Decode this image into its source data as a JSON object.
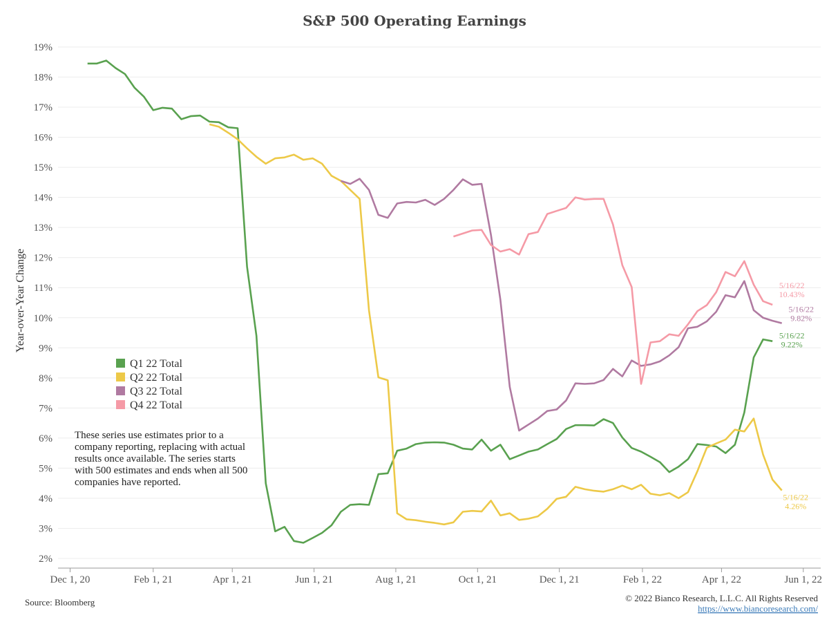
{
  "chart_data": {
    "type": "line",
    "title": "S&P 500 Operating Earnings",
    "xlabel": "",
    "ylabel": "Year-over-Year Change",
    "ylim": [
      2,
      19
    ],
    "y_ticks": [
      "2%",
      "3%",
      "4%",
      "5%",
      "6%",
      "7%",
      "8%",
      "9%",
      "10%",
      "11%",
      "12%",
      "13%",
      "14%",
      "15%",
      "16%",
      "17%",
      "18%",
      "19%"
    ],
    "x_ticks": [
      {
        "date": "2020-12-01",
        "label": "Dec 1, 20"
      },
      {
        "date": "2021-02-01",
        "label": "Feb 1, 21"
      },
      {
        "date": "2021-04-01",
        "label": "Apr 1, 21"
      },
      {
        "date": "2021-06-01",
        "label": "Jun 1, 21"
      },
      {
        "date": "2021-08-01",
        "label": "Aug 1, 21"
      },
      {
        "date": "2021-10-01",
        "label": "Oct 1, 21"
      },
      {
        "date": "2021-12-01",
        "label": "Dec 1, 21"
      },
      {
        "date": "2022-02-01",
        "label": "Feb 1, 22"
      },
      {
        "date": "2022-04-01",
        "label": "Apr 1, 22"
      },
      {
        "date": "2022-06-01",
        "label": "Jun 1, 22"
      }
    ],
    "x_range": [
      "2020-11-22",
      "2022-06-14"
    ],
    "grid": "horizontal",
    "legend_position": "left-middle",
    "series": [
      {
        "name": "Q1 22 Total",
        "color": "#59a14f",
        "end_label": {
          "date": "5/16/22",
          "value": "9.22%"
        },
        "points": [
          [
            "2020-12-14",
            18.45
          ],
          [
            "2020-12-21",
            18.45
          ],
          [
            "2020-12-28",
            18.55
          ],
          [
            "2021-01-04",
            18.3
          ],
          [
            "2021-01-11",
            18.1
          ],
          [
            "2021-01-18",
            17.65
          ],
          [
            "2021-01-25",
            17.35
          ],
          [
            "2021-02-01",
            16.9
          ],
          [
            "2021-02-08",
            16.98
          ],
          [
            "2021-02-15",
            16.95
          ],
          [
            "2021-02-22",
            16.6
          ],
          [
            "2021-03-01",
            16.7
          ],
          [
            "2021-03-08",
            16.72
          ],
          [
            "2021-03-15",
            16.52
          ],
          [
            "2021-03-22",
            16.5
          ],
          [
            "2021-03-29",
            16.33
          ],
          [
            "2021-04-05",
            16.3
          ],
          [
            "2021-04-12",
            11.7
          ],
          [
            "2021-04-19",
            9.4
          ],
          [
            "2021-04-26",
            4.5
          ],
          [
            "2021-05-03",
            2.9
          ],
          [
            "2021-05-10",
            3.05
          ],
          [
            "2021-05-17",
            2.58
          ],
          [
            "2021-05-24",
            2.52
          ],
          [
            "2021-05-31",
            2.68
          ],
          [
            "2021-06-07",
            2.85
          ],
          [
            "2021-06-14",
            3.1
          ],
          [
            "2021-06-21",
            3.55
          ],
          [
            "2021-06-28",
            3.78
          ],
          [
            "2021-07-05",
            3.8
          ],
          [
            "2021-07-12",
            3.78
          ],
          [
            "2021-07-19",
            4.8
          ],
          [
            "2021-07-26",
            4.83
          ],
          [
            "2021-08-02",
            5.58
          ],
          [
            "2021-08-09",
            5.65
          ],
          [
            "2021-08-16",
            5.8
          ],
          [
            "2021-08-23",
            5.85
          ],
          [
            "2021-08-30",
            5.86
          ],
          [
            "2021-09-06",
            5.85
          ],
          [
            "2021-09-13",
            5.78
          ],
          [
            "2021-09-20",
            5.65
          ],
          [
            "2021-09-27",
            5.62
          ],
          [
            "2021-10-04",
            5.95
          ],
          [
            "2021-10-11",
            5.58
          ],
          [
            "2021-10-18",
            5.78
          ],
          [
            "2021-10-25",
            5.3
          ],
          [
            "2021-11-01",
            5.42
          ],
          [
            "2021-11-08",
            5.55
          ],
          [
            "2021-11-15",
            5.62
          ],
          [
            "2021-11-22",
            5.8
          ],
          [
            "2021-11-29",
            5.97
          ],
          [
            "2021-12-06",
            6.3
          ],
          [
            "2021-12-13",
            6.43
          ],
          [
            "2021-12-20",
            6.43
          ],
          [
            "2021-12-27",
            6.42
          ],
          [
            "2022-01-03",
            6.63
          ],
          [
            "2022-01-10",
            6.5
          ],
          [
            "2022-01-17",
            6.02
          ],
          [
            "2022-01-24",
            5.67
          ],
          [
            "2022-01-31",
            5.55
          ],
          [
            "2022-02-07",
            5.38
          ],
          [
            "2022-02-14",
            5.2
          ],
          [
            "2022-02-21",
            4.87
          ],
          [
            "2022-02-28",
            5.05
          ],
          [
            "2022-03-07",
            5.3
          ],
          [
            "2022-03-14",
            5.8
          ],
          [
            "2022-03-21",
            5.77
          ],
          [
            "2022-03-28",
            5.72
          ],
          [
            "2022-04-04",
            5.5
          ],
          [
            "2022-04-11",
            5.78
          ],
          [
            "2022-04-18",
            6.85
          ],
          [
            "2022-04-25",
            8.68
          ],
          [
            "2022-05-02",
            9.28
          ],
          [
            "2022-05-09",
            9.22
          ]
        ]
      },
      {
        "name": "Q2 22 Total",
        "color": "#edc948",
        "end_label": {
          "date": "5/16/22",
          "value": "4.26%"
        },
        "points": [
          [
            "2021-03-15",
            16.43
          ],
          [
            "2021-03-22",
            16.35
          ],
          [
            "2021-03-29",
            16.15
          ],
          [
            "2021-04-05",
            15.93
          ],
          [
            "2021-04-12",
            15.63
          ],
          [
            "2021-04-19",
            15.35
          ],
          [
            "2021-04-26",
            15.12
          ],
          [
            "2021-05-03",
            15.3
          ],
          [
            "2021-05-10",
            15.33
          ],
          [
            "2021-05-17",
            15.42
          ],
          [
            "2021-05-24",
            15.25
          ],
          [
            "2021-05-31",
            15.3
          ],
          [
            "2021-06-07",
            15.12
          ],
          [
            "2021-06-14",
            14.72
          ],
          [
            "2021-06-21",
            14.55
          ],
          [
            "2021-06-28",
            14.25
          ],
          [
            "2021-07-05",
            13.95
          ],
          [
            "2021-07-12",
            10.25
          ],
          [
            "2021-07-19",
            8.02
          ],
          [
            "2021-07-26",
            7.92
          ],
          [
            "2021-08-02",
            3.5
          ],
          [
            "2021-08-09",
            3.3
          ],
          [
            "2021-08-16",
            3.27
          ],
          [
            "2021-08-23",
            3.22
          ],
          [
            "2021-08-30",
            3.18
          ],
          [
            "2021-09-06",
            3.13
          ],
          [
            "2021-09-13",
            3.2
          ],
          [
            "2021-09-20",
            3.55
          ],
          [
            "2021-09-27",
            3.58
          ],
          [
            "2021-10-04",
            3.56
          ],
          [
            "2021-10-11",
            3.92
          ],
          [
            "2021-10-18",
            3.43
          ],
          [
            "2021-10-25",
            3.5
          ],
          [
            "2021-11-01",
            3.28
          ],
          [
            "2021-11-08",
            3.32
          ],
          [
            "2021-11-15",
            3.4
          ],
          [
            "2021-11-22",
            3.65
          ],
          [
            "2021-11-29",
            3.98
          ],
          [
            "2021-12-06",
            4.05
          ],
          [
            "2021-12-13",
            4.38
          ],
          [
            "2021-12-20",
            4.3
          ],
          [
            "2021-12-27",
            4.25
          ],
          [
            "2022-01-03",
            4.22
          ],
          [
            "2022-01-10",
            4.3
          ],
          [
            "2022-01-17",
            4.42
          ],
          [
            "2022-01-24",
            4.3
          ],
          [
            "2022-01-31",
            4.45
          ],
          [
            "2022-02-07",
            4.15
          ],
          [
            "2022-02-14",
            4.1
          ],
          [
            "2022-02-21",
            4.17
          ],
          [
            "2022-02-28",
            4.0
          ],
          [
            "2022-03-07",
            4.2
          ],
          [
            "2022-03-14",
            4.9
          ],
          [
            "2022-03-21",
            5.68
          ],
          [
            "2022-03-28",
            5.82
          ],
          [
            "2022-04-04",
            5.95
          ],
          [
            "2022-04-11",
            6.28
          ],
          [
            "2022-04-18",
            6.22
          ],
          [
            "2022-04-25",
            6.65
          ],
          [
            "2022-05-02",
            5.45
          ],
          [
            "2022-05-09",
            4.62
          ],
          [
            "2022-05-16",
            4.26
          ]
        ]
      },
      {
        "name": "Q3 22 Total",
        "color": "#b07aa1",
        "end_label": {
          "date": "5/16/22",
          "value": "9.82%"
        },
        "points": [
          [
            "2021-06-21",
            14.55
          ],
          [
            "2021-06-28",
            14.45
          ],
          [
            "2021-07-05",
            14.62
          ],
          [
            "2021-07-12",
            14.25
          ],
          [
            "2021-07-19",
            13.42
          ],
          [
            "2021-07-26",
            13.32
          ],
          [
            "2021-08-02",
            13.8
          ],
          [
            "2021-08-09",
            13.85
          ],
          [
            "2021-08-16",
            13.83
          ],
          [
            "2021-08-23",
            13.92
          ],
          [
            "2021-08-30",
            13.75
          ],
          [
            "2021-09-06",
            13.95
          ],
          [
            "2021-09-13",
            14.25
          ],
          [
            "2021-09-20",
            14.6
          ],
          [
            "2021-09-27",
            14.42
          ],
          [
            "2021-10-04",
            14.45
          ],
          [
            "2021-10-11",
            12.75
          ],
          [
            "2021-10-18",
            10.6
          ],
          [
            "2021-10-25",
            7.7
          ],
          [
            "2021-11-01",
            6.25
          ],
          [
            "2021-11-08",
            6.45
          ],
          [
            "2021-11-15",
            6.65
          ],
          [
            "2021-11-22",
            6.9
          ],
          [
            "2021-11-29",
            6.95
          ],
          [
            "2021-12-06",
            7.25
          ],
          [
            "2021-12-13",
            7.82
          ],
          [
            "2021-12-20",
            7.8
          ],
          [
            "2021-12-27",
            7.82
          ],
          [
            "2022-01-03",
            7.93
          ],
          [
            "2022-01-10",
            8.3
          ],
          [
            "2022-01-17",
            8.05
          ],
          [
            "2022-01-24",
            8.58
          ],
          [
            "2022-01-31",
            8.4
          ],
          [
            "2022-02-07",
            8.45
          ],
          [
            "2022-02-14",
            8.55
          ],
          [
            "2022-02-21",
            8.75
          ],
          [
            "2022-02-28",
            9.02
          ],
          [
            "2022-03-07",
            9.65
          ],
          [
            "2022-03-14",
            9.7
          ],
          [
            "2022-03-21",
            9.88
          ],
          [
            "2022-03-28",
            10.2
          ],
          [
            "2022-04-04",
            10.75
          ],
          [
            "2022-04-11",
            10.68
          ],
          [
            "2022-04-18",
            11.22
          ],
          [
            "2022-04-25",
            10.25
          ],
          [
            "2022-05-02",
            10.0
          ],
          [
            "2022-05-09",
            9.9
          ],
          [
            "2022-05-16",
            9.82
          ]
        ]
      },
      {
        "name": "Q4 22 Total",
        "color": "#f59aa6",
        "end_label": {
          "date": "5/16/22",
          "value": "10.43%"
        },
        "points": [
          [
            "2021-09-13",
            12.7
          ],
          [
            "2021-09-20",
            12.8
          ],
          [
            "2021-09-27",
            12.9
          ],
          [
            "2021-10-04",
            12.92
          ],
          [
            "2021-10-11",
            12.42
          ],
          [
            "2021-10-18",
            12.2
          ],
          [
            "2021-10-25",
            12.28
          ],
          [
            "2021-11-01",
            12.1
          ],
          [
            "2021-11-08",
            12.78
          ],
          [
            "2021-11-15",
            12.85
          ],
          [
            "2021-11-22",
            13.45
          ],
          [
            "2021-11-29",
            13.55
          ],
          [
            "2021-12-06",
            13.65
          ],
          [
            "2021-12-13",
            14.0
          ],
          [
            "2021-12-20",
            13.93
          ],
          [
            "2021-12-27",
            13.95
          ],
          [
            "2022-01-03",
            13.95
          ],
          [
            "2022-01-10",
            13.1
          ],
          [
            "2022-01-17",
            11.75
          ],
          [
            "2022-01-24",
            11.02
          ],
          [
            "2022-01-31",
            7.8
          ],
          [
            "2022-02-07",
            9.18
          ],
          [
            "2022-02-14",
            9.22
          ],
          [
            "2022-02-21",
            9.45
          ],
          [
            "2022-02-28",
            9.4
          ],
          [
            "2022-03-07",
            9.78
          ],
          [
            "2022-03-14",
            10.22
          ],
          [
            "2022-03-21",
            10.42
          ],
          [
            "2022-03-28",
            10.85
          ],
          [
            "2022-04-04",
            11.52
          ],
          [
            "2022-04-11",
            11.38
          ],
          [
            "2022-04-18",
            11.88
          ],
          [
            "2022-04-25",
            11.1
          ],
          [
            "2022-05-02",
            10.55
          ],
          [
            "2022-05-09",
            10.43
          ]
        ]
      }
    ]
  },
  "note_lines": [
    "These series use estimates prior to a",
    "company reporting, replacing with actual",
    "results once available. The series starts",
    "with 500 estimates and ends when all 500",
    "companies have reported."
  ],
  "footer": {
    "source": "Source: Bloomberg",
    "copyright": "© 2022 Bianco Research, L.L.C. All Rights Reserved",
    "url": "https://www.biancoresearch.com/"
  }
}
